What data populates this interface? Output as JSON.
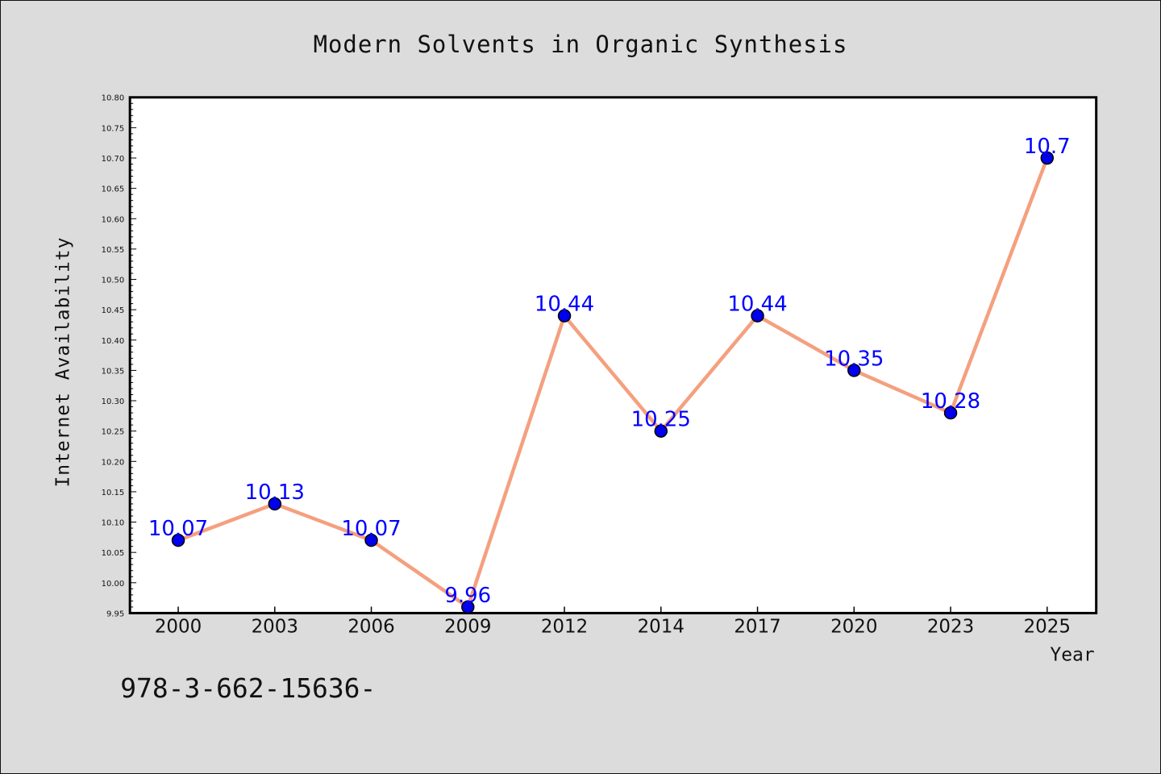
{
  "chart_data": {
    "type": "line",
    "title": "Modern Solvents in Organic Synthesis",
    "xlabel": "Year",
    "ylabel": "Internet Availability",
    "categories": [
      "2000",
      "2003",
      "2006",
      "2009",
      "2012",
      "2014",
      "2017",
      "2020",
      "2023",
      "2025"
    ],
    "series": [
      {
        "values": [
          10.07,
          10.13,
          10.07,
          9.96,
          10.44,
          10.25,
          10.44,
          10.35,
          10.28,
          10.7
        ],
        "labels": [
          "10.07",
          "10.13",
          "10.07",
          "9.96",
          "10.44",
          "10.25",
          "10.44",
          "10.35",
          "10.28",
          "10.7"
        ],
        "line_color": "#f4a07f",
        "marker_color": "#0000ee"
      }
    ],
    "ylim": [
      9.95,
      10.8
    ],
    "yticks": [
      "9.95",
      "10.00",
      "10.05",
      "10.10",
      "10.15",
      "10.20",
      "10.25",
      "10.30",
      "10.35",
      "10.40",
      "10.45",
      "10.50",
      "10.55",
      "10.60",
      "10.65",
      "10.70",
      "10.75",
      "10.80"
    ],
    "grid": false,
    "legend": "none",
    "background": "#dcdcdc",
    "plot_background": "#ffffff",
    "label_color": "#0000ff"
  },
  "footnote": "978-3-662-15636-"
}
